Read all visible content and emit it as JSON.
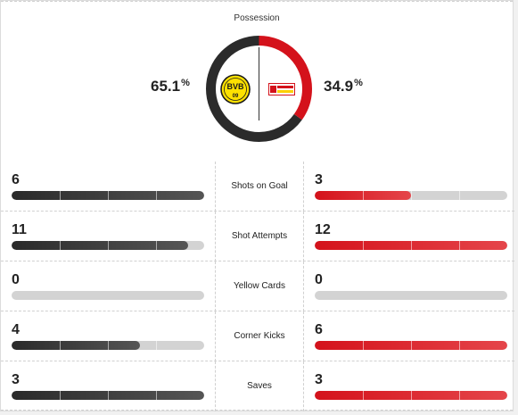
{
  "possession": {
    "title": "Possession",
    "home_value": "65.1",
    "away_value": "34.9",
    "unit": "%",
    "home_fraction": 0.651,
    "away_fraction": 0.349,
    "home_color": "#2b2b2b",
    "away_color": "#d4121b"
  },
  "teams": {
    "home": {
      "crest_icon": "dortmund-crest-icon",
      "crest_text": "BVB",
      "crest_number": "09"
    },
    "away": {
      "crest_icon": "union-berlin-crest-icon"
    }
  },
  "stats": [
    {
      "label": "Shots on Goal",
      "home": "6",
      "away": "3",
      "home_max": 6,
      "away_max": 6,
      "home_fraction": 1.0,
      "away_fraction": 0.5
    },
    {
      "label": "Shot Attempts",
      "home": "11",
      "away": "12",
      "home_fraction": 0.917,
      "away_fraction": 1.0
    },
    {
      "label": "Yellow Cards",
      "home": "0",
      "away": "0",
      "home_fraction": 0,
      "away_fraction": 0
    },
    {
      "label": "Corner Kicks",
      "home": "4",
      "away": "6",
      "home_fraction": 0.667,
      "away_fraction": 1.0
    },
    {
      "label": "Saves",
      "home": "3",
      "away": "3",
      "home_fraction": 1.0,
      "away_fraction": 1.0
    }
  ]
}
